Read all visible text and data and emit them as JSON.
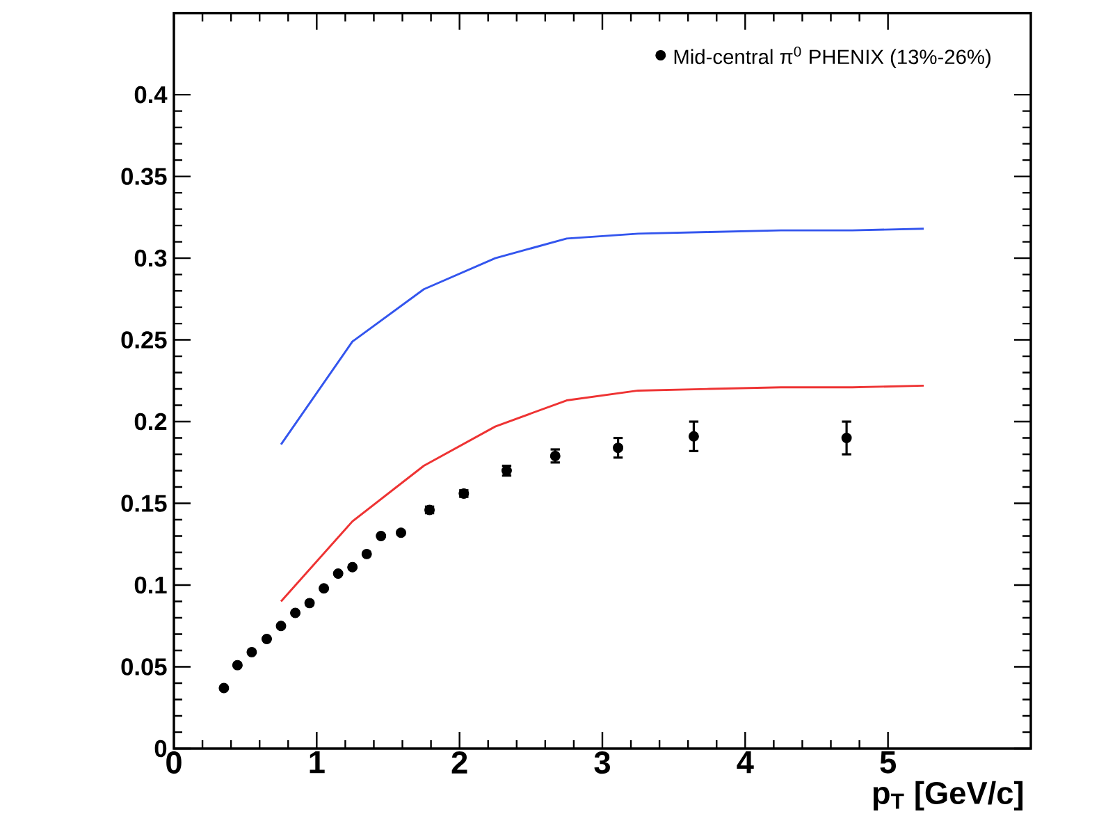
{
  "chart_data": {
    "type": "line",
    "xlabel": "p$_{T}$ [GeV/c]",
    "xlim": [
      0,
      6
    ],
    "ylim": [
      0,
      0.45
    ],
    "xticks": [
      0,
      1,
      2,
      3,
      4,
      5
    ],
    "yticks": [
      0,
      0.05,
      0.1,
      0.15,
      0.2,
      0.25,
      0.3,
      0.35,
      0.4
    ],
    "legend": "top right",
    "grid": false,
    "series": [
      {
        "name": "Mid-central π$^{0}$ PHENIX (13%-26%)",
        "type": "scatter",
        "marker": "circle",
        "color": "#000000",
        "x": [
          0.35,
          0.445,
          0.545,
          0.65,
          0.75,
          0.85,
          0.95,
          1.05,
          1.15,
          1.25,
          1.35,
          1.45,
          1.59,
          1.79,
          2.03,
          2.33,
          2.67,
          3.11,
          3.64,
          4.71
        ],
        "values": [
          0.037,
          0.051,
          0.059,
          0.067,
          0.075,
          0.083,
          0.089,
          0.098,
          0.107,
          0.111,
          0.119,
          0.13,
          0.132,
          0.146,
          0.156,
          0.17,
          0.179,
          0.184,
          0.191,
          0.19
        ],
        "errors": [
          null,
          null,
          null,
          null,
          null,
          null,
          null,
          null,
          null,
          null,
          null,
          null,
          null,
          0.002,
          0.002,
          0.003,
          0.004,
          0.006,
          0.009,
          0.01
        ]
      },
      {
        "color": "#3355ee",
        "x": [
          0.75,
          1.25,
          1.75,
          2.25,
          2.75,
          3.25,
          3.75,
          4.25,
          4.75,
          5.25
        ],
        "values": [
          0.186,
          0.249,
          0.281,
          0.3,
          0.312,
          0.315,
          0.316,
          0.317,
          0.317,
          0.318
        ]
      },
      {
        "color": "#ee3333",
        "x": [
          0.75,
          1.25,
          1.75,
          2.25,
          2.75,
          3.25,
          3.75,
          4.25,
          4.75,
          5.25
        ],
        "values": [
          0.09,
          0.139,
          0.173,
          0.197,
          0.213,
          0.219,
          0.22,
          0.221,
          0.221,
          0.222
        ]
      }
    ]
  }
}
